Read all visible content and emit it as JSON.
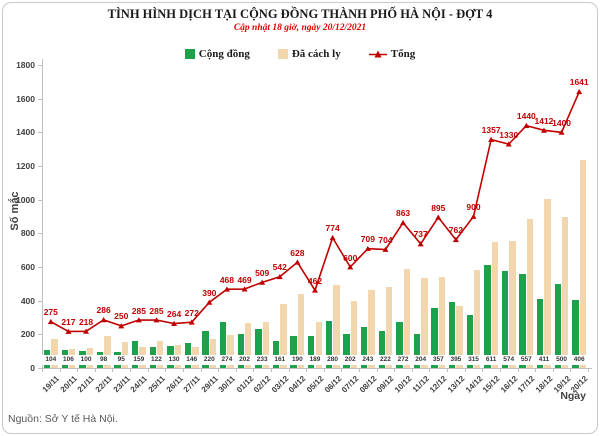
{
  "header": {
    "title": "TÌNH HÌNH DỊCH TẠI CỘNG ĐỒNG THÀNH PHỐ HÀ NỘI - ĐỢT 4",
    "subtitle": "Cập nhật 18 giờ, ngày 20/12/2021"
  },
  "source": "Nguồn: Sở Y tế Hà Nội.",
  "chart_data": {
    "type": "bar+line",
    "title": "TÌNH HÌNH DỊCH TẠI CỘNG ĐỒNG THÀNH PHỐ HÀ NỘI - ĐỢT 4",
    "categories": [
      "19/11",
      "20/11",
      "21/11",
      "22/11",
      "23/11",
      "24/11",
      "25/11",
      "26/11",
      "27/11",
      "29/11",
      "30/11",
      "01/12",
      "02/12",
      "03/12",
      "04/12",
      "05/12",
      "06/12",
      "07/12",
      "08/12",
      "09/12",
      "10/12",
      "11/12",
      "12/12",
      "13/12",
      "14/12",
      "15/12",
      "16/12",
      "17/12",
      "18/12",
      "19/12",
      "20/12"
    ],
    "series": [
      {
        "name": "Cộng đồng",
        "type": "bar",
        "color": "#1fa04a",
        "values": [
          104,
          106,
          100,
          98,
          95,
          159,
          122,
          130,
          146,
          220,
          274,
          202,
          233,
          161,
          190,
          189,
          280,
          202,
          243,
          222,
          272,
          204,
          357,
          395,
          315,
          611,
          574,
          557,
          411,
          500,
          406
        ],
        "labels_shown": true
      },
      {
        "name": "Đã cách ly",
        "type": "bar",
        "color": "#f2d7ae",
        "values": [
          171,
          111,
          118,
          188,
          155,
          126,
          163,
          134,
          126,
          170,
          194,
          267,
          276,
          381,
          438,
          273,
          494,
          398,
          466,
          482,
          591,
          533,
          538,
          367,
          585,
          746,
          756,
          883,
          1001,
          900,
          1235
        ],
        "labels_shown": false
      },
      {
        "name": "Tổng",
        "type": "line",
        "color": "#c00000",
        "values": [
          275,
          217,
          218,
          286,
          250,
          285,
          285,
          264,
          272,
          390,
          468,
          469,
          509,
          542,
          628,
          462,
          774,
          600,
          709,
          704,
          863,
          737,
          895,
          762,
          900,
          1357,
          1330,
          1440,
          1412,
          1400,
          1641
        ],
        "labels_shown": true
      }
    ],
    "xlabel": "Ngày",
    "ylabel": "Số mắc",
    "ylim": [
      0,
      1800
    ],
    "yticks": [
      0,
      200,
      400,
      600,
      800,
      1000,
      1200,
      1400,
      1600,
      1800
    ],
    "legend_position": "top",
    "grid": false
  }
}
